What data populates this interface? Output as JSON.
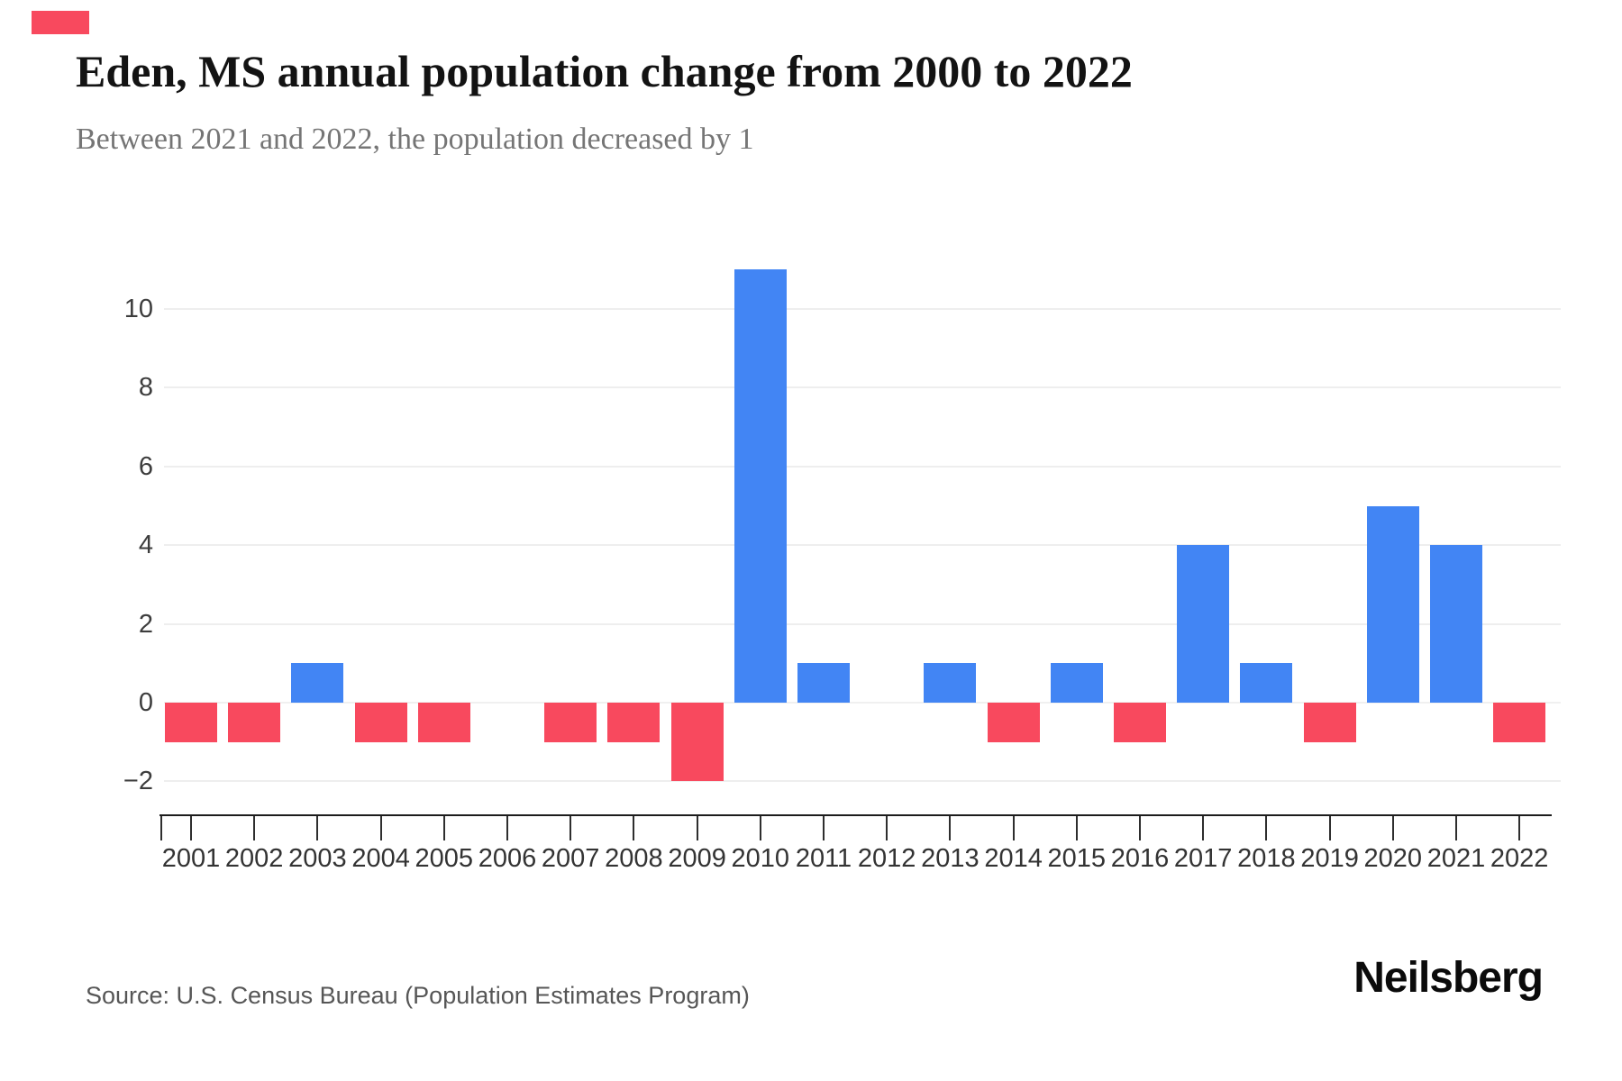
{
  "brand": {
    "accent_color": "#F8495E",
    "logo_text": "Neilsberg"
  },
  "header": {
    "title": "Eden, MS annual population change from 2000 to 2022",
    "subtitle": "Between 2021 and 2022, the population decreased by 1"
  },
  "footer": {
    "source": "Source: U.S. Census Bureau (Population Estimates Program)",
    "logo": "Neilsberg"
  },
  "chart_data": {
    "type": "bar",
    "title": "Eden, MS annual population change from 2000 to 2022",
    "subtitle": "Between 2021 and 2022, the population decreased by 1",
    "categories": [
      "2001",
      "2002",
      "2003",
      "2004",
      "2005",
      "2006",
      "2007",
      "2008",
      "2009",
      "2010",
      "2011",
      "2012",
      "2013",
      "2014",
      "2015",
      "2016",
      "2017",
      "2018",
      "2019",
      "2020",
      "2021",
      "2022"
    ],
    "values": [
      -1,
      -1,
      1,
      -1,
      -1,
      0,
      -1,
      -1,
      -2,
      11,
      1,
      0,
      1,
      -1,
      1,
      -1,
      4,
      1,
      -1,
      5,
      4,
      -1
    ],
    "xlabel": "",
    "ylabel": "",
    "yticks": [
      10,
      8,
      6,
      4,
      2,
      0,
      -2
    ],
    "ylim": [
      -2.85,
      11.6
    ],
    "grid": true,
    "legend": "none",
    "colors": {
      "positive": "#4285F4",
      "negative": "#F8495E",
      "gridline": "#eeeeee",
      "axis": "#1c1c1c"
    }
  }
}
